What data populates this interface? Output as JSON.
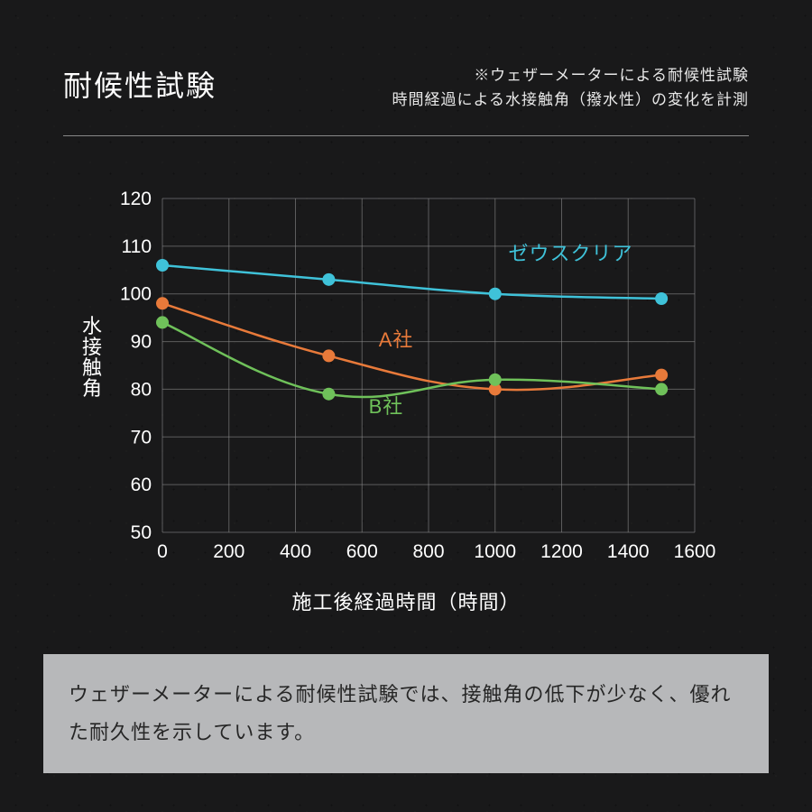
{
  "header": {
    "title": "耐候性試験",
    "subtitle_line1": "※ウェザーメーターによる耐候性試験",
    "subtitle_line2": "時間経過による水接触角（撥水性）の変化を計測"
  },
  "chart": {
    "type": "line",
    "background_color": "transparent",
    "grid_color": "#8a8a8a",
    "grid_width": 1,
    "axis_color": "#ffffff",
    "tick_font_size": 21,
    "label_font_size": 22,
    "x": {
      "min": 0,
      "max": 1600,
      "tick_step": 200,
      "ticks": [
        0,
        200,
        400,
        600,
        800,
        1000,
        1200,
        1400,
        1600
      ],
      "label": "施工後経過時間（時間）"
    },
    "y": {
      "min": 50,
      "max": 120,
      "tick_step": 10,
      "ticks": [
        50,
        60,
        70,
        80,
        90,
        100,
        110,
        120
      ],
      "label": "水接触角"
    },
    "series": [
      {
        "name": "ゼウスクリア",
        "color": "#3fc2d9",
        "line_width": 2.5,
        "marker": "circle",
        "marker_size": 7,
        "label_pos": {
          "x": 1040,
          "y": 107
        },
        "points": [
          {
            "x": 0,
            "y": 106
          },
          {
            "x": 500,
            "y": 103
          },
          {
            "x": 1000,
            "y": 100
          },
          {
            "x": 1500,
            "y": 99
          }
        ]
      },
      {
        "name": "A社",
        "color": "#e87a3a",
        "line_width": 2.5,
        "marker": "circle",
        "marker_size": 7,
        "label_pos": {
          "x": 650,
          "y": 89
        },
        "points": [
          {
            "x": 0,
            "y": 98
          },
          {
            "x": 500,
            "y": 87
          },
          {
            "x": 1000,
            "y": 80
          },
          {
            "x": 1500,
            "y": 83
          }
        ]
      },
      {
        "name": "B社",
        "color": "#6fc15a",
        "line_width": 2.5,
        "marker": "circle",
        "marker_size": 7,
        "label_pos": {
          "x": 620,
          "y": 75
        },
        "points": [
          {
            "x": 0,
            "y": 94
          },
          {
            "x": 500,
            "y": 79
          },
          {
            "x": 1000,
            "y": 82
          },
          {
            "x": 1500,
            "y": 80
          }
        ]
      }
    ]
  },
  "caption": "ウェザーメーターによる耐候性試験では、接触角の低下が少なく、優れた耐久性を示しています。"
}
